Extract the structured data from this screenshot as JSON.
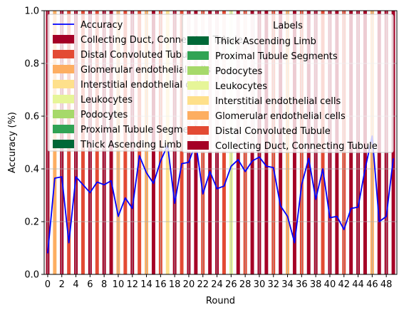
{
  "chart_data": {
    "type": "bar",
    "title": "",
    "xlabel": "Round",
    "ylabel": "Accuracy (%)",
    "xlim": [
      0,
      49
    ],
    "ylim": [
      0,
      1.0
    ],
    "grid": true,
    "x_tick_labels": [
      "0",
      "2",
      "4",
      "6",
      "8",
      "10",
      "12",
      "14",
      "16",
      "18",
      "20",
      "22",
      "24",
      "26",
      "28",
      "30",
      "32",
      "34",
      "36",
      "38",
      "40",
      "42",
      "44",
      "46",
      "48"
    ],
    "y_tick_labels": [
      "0.0",
      "0.2",
      "0.4",
      "0.6",
      "0.8",
      "1.0"
    ],
    "label_colors": {
      "Collecting Duct, Connecting Tubule": "#a50026",
      "Distal Convoluted Tubule": "#e34a33",
      "Glomerular endothelial cells": "#fdae61",
      "Interstitial endothelial cells": "#fee08b",
      "Leukocytes": "#e6f598",
      "Podocytes": "#a6d96a",
      "Proximal Tubule Segments": "#31a354",
      "Thick Ascending Limb": "#006837"
    },
    "rounds": [
      0,
      1,
      2,
      3,
      4,
      5,
      6,
      7,
      8,
      9,
      10,
      11,
      12,
      13,
      14,
      15,
      16,
      17,
      18,
      19,
      20,
      21,
      22,
      23,
      24,
      25,
      26,
      27,
      28,
      29,
      30,
      31,
      32,
      33,
      34,
      35,
      36,
      37,
      38,
      39,
      40,
      41,
      42,
      43,
      44,
      45,
      46,
      47,
      48,
      49
    ],
    "round_labels": [
      "Collecting Duct, Connecting Tubule",
      "Glomerular endothelial cells",
      "Collecting Duct, Connecting Tubule",
      "Distal Convoluted Tubule",
      "Collecting Duct, Connecting Tubule",
      "Distal Convoluted Tubule",
      "Collecting Duct, Connecting Tubule",
      "Distal Convoluted Tubule",
      "Collecting Duct, Connecting Tubule",
      "Collecting Duct, Connecting Tubule",
      "Glomerular endothelial cells",
      "Distal Convoluted Tubule",
      "Collecting Duct, Connecting Tubule",
      "Distal Convoluted Tubule",
      "Glomerular endothelial cells",
      "Collecting Duct, Connecting Tubule",
      "Distal Convoluted Tubule",
      "Interstitial endothelial cells",
      "Collecting Duct, Connecting Tubule",
      "Distal Convoluted Tubule",
      "Collecting Duct, Connecting Tubule",
      "Collecting Duct, Connecting Tubule",
      "Distal Convoluted Tubule",
      "Collecting Duct, Connecting Tubule",
      "Collecting Duct, Connecting Tubule",
      "Distal Convoluted Tubule",
      "Leukocytes",
      "Collecting Duct, Connecting Tubule",
      "Distal Convoluted Tubule",
      "Collecting Duct, Connecting Tubule",
      "Collecting Duct, Connecting Tubule",
      "Collecting Duct, Connecting Tubule",
      "Distal Convoluted Tubule",
      "Collecting Duct, Connecting Tubule",
      "Glomerular endothelial cells",
      "Collecting Duct, Connecting Tubule",
      "Distal Convoluted Tubule",
      "Collecting Duct, Connecting Tubule",
      "Collecting Duct, Connecting Tubule",
      "Distal Convoluted Tubule",
      "Collecting Duct, Connecting Tubule",
      "Collecting Duct, Connecting Tubule",
      "Distal Convoluted Tubule",
      "Collecting Duct, Connecting Tubule",
      "Collecting Duct, Connecting Tubule",
      "Collecting Duct, Connecting Tubule",
      "Glomerular endothelial cells",
      "Collecting Duct, Connecting Tubule",
      "Collecting Duct, Connecting Tubule",
      "Collecting Duct, Connecting Tubule"
    ],
    "series": [
      {
        "name": "Accuracy",
        "color": "#0000ff",
        "values": [
          0.08,
          0.365,
          0.37,
          0.12,
          0.37,
          0.34,
          0.31,
          0.35,
          0.34,
          0.355,
          0.22,
          0.29,
          0.25,
          0.45,
          0.385,
          0.345,
          0.43,
          0.49,
          0.27,
          0.42,
          0.425,
          0.5,
          0.305,
          0.39,
          0.325,
          0.335,
          0.41,
          0.435,
          0.39,
          0.43,
          0.445,
          0.41,
          0.405,
          0.26,
          0.22,
          0.12,
          0.34,
          0.44,
          0.285,
          0.4,
          0.215,
          0.22,
          0.17,
          0.25,
          0.255,
          0.4,
          0.525,
          0.2,
          0.22,
          0.44
        ]
      }
    ],
    "legend": {
      "placement": "top-left",
      "entries": [
        {
          "label": "Accuracy",
          "kind": "line",
          "color": "#0000ff"
        },
        {
          "label": "Collecting Duct, Connecting Tubule",
          "kind": "patch",
          "color": "#a50026"
        },
        {
          "label": "Distal Convoluted Tubule",
          "kind": "patch",
          "color": "#e34a33"
        },
        {
          "label": "Glomerular endothelial cells",
          "kind": "patch",
          "color": "#fdae61"
        },
        {
          "label": "Interstitial endothelial cells",
          "kind": "patch",
          "color": "#fee08b"
        },
        {
          "label": "Leukocytes",
          "kind": "patch",
          "color": "#e6f598"
        },
        {
          "label": "Podocytes",
          "kind": "patch",
          "color": "#a6d96a"
        },
        {
          "label": "Proximal Tubule Segments",
          "kind": "patch",
          "color": "#31a354"
        },
        {
          "label": "Thick Ascending Limb",
          "kind": "patch",
          "color": "#006837"
        }
      ]
    },
    "labels_legend": {
      "title": "Labels",
      "placement": "top-right",
      "entries": [
        {
          "label": "Thick Ascending Limb",
          "color": "#006837"
        },
        {
          "label": "Proximal Tubule Segments",
          "color": "#31a354"
        },
        {
          "label": "Podocytes",
          "color": "#a6d96a"
        },
        {
          "label": "Leukocytes",
          "color": "#e6f598"
        },
        {
          "label": "Interstitial endothelial cells",
          "color": "#fee08b"
        },
        {
          "label": "Glomerular endothelial cells",
          "color": "#fdae61"
        },
        {
          "label": "Distal Convoluted Tubule",
          "color": "#e34a33"
        },
        {
          "label": "Collecting Duct, Connecting Tubule",
          "color": "#a50026"
        }
      ]
    }
  }
}
